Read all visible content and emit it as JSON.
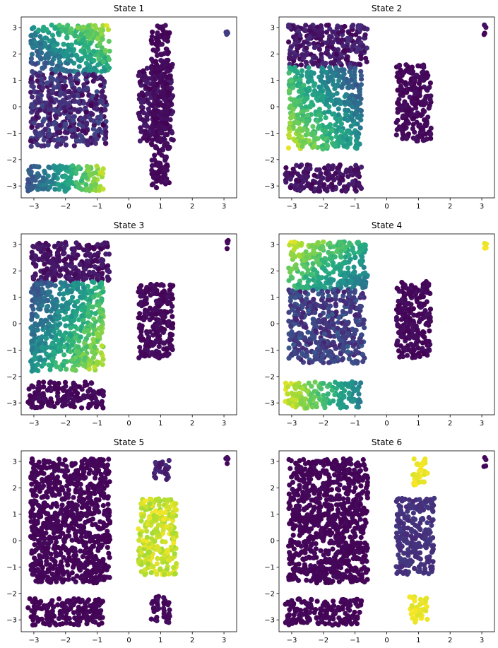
{
  "chart_data": [
    {
      "type": "scatter",
      "title": "State 1",
      "xlim": [
        -3.4,
        3.4
      ],
      "ylim": [
        -3.45,
        3.4
      ],
      "xticks": [
        -3,
        -2,
        -1,
        0,
        1,
        2,
        3
      ],
      "yticks": [
        -3,
        -2,
        -1,
        0,
        1,
        2,
        3
      ],
      "colormap": "viridis",
      "clusters": [
        {
          "x_range": [
            -3.1,
            -0.6
          ],
          "y_range": [
            1.3,
            3.1
          ],
          "color_gradient": "increases toward upper-right",
          "value_range": [
            0.1,
            1.0
          ]
        },
        {
          "x_range": [
            -3.1,
            -0.7
          ],
          "y_range": [
            -1.5,
            1.3
          ],
          "value_range": [
            0.0,
            0.25
          ]
        },
        {
          "x_range": [
            -3.2,
            -0.8
          ],
          "y_range": [
            -3.2,
            -2.2
          ],
          "color_gradient": "increases toward right",
          "value_range": [
            0.2,
            0.95
          ]
        },
        {
          "x_range": [
            0.3,
            1.4
          ],
          "y_range": [
            -1.3,
            1.6
          ],
          "value_range": [
            0.0,
            0.1
          ]
        },
        {
          "x_range": [
            0.7,
            1.3
          ],
          "y_range": [
            -3.1,
            3.1
          ],
          "value_range": [
            0.0,
            0.05
          ]
        },
        {
          "x_range": [
            3.05,
            3.15
          ],
          "y_range": [
            2.7,
            3.15
          ],
          "value_range": [
            0.1,
            0.2
          ]
        }
      ]
    },
    {
      "type": "scatter",
      "title": "State 2",
      "xlim": [
        -3.4,
        3.4
      ],
      "ylim": [
        -3.45,
        3.4
      ],
      "xticks": [
        -3,
        -2,
        -1,
        0,
        1,
        2,
        3
      ],
      "yticks": [
        -3,
        -2,
        -1,
        0,
        1,
        2,
        3
      ],
      "colormap": "viridis",
      "clusters": [
        {
          "x_range": [
            -3.1,
            -0.6
          ],
          "y_range": [
            1.5,
            3.1
          ],
          "value_range": [
            0.0,
            0.15
          ]
        },
        {
          "x_range": [
            -3.1,
            -0.8
          ],
          "y_range": [
            -1.6,
            1.5
          ],
          "color_gradient": "increases toward lower-left",
          "value_range": [
            0.15,
            1.0
          ]
        },
        {
          "x_range": [
            -3.2,
            -0.8
          ],
          "y_range": [
            -3.2,
            -2.2
          ],
          "value_range": [
            0.0,
            0.1
          ]
        },
        {
          "x_range": [
            0.3,
            1.4
          ],
          "y_range": [
            -1.3,
            1.6
          ],
          "value_range": [
            0.0,
            0.05
          ]
        },
        {
          "x_range": [
            3.05,
            3.15
          ],
          "y_range": [
            2.7,
            3.15
          ],
          "value_range": [
            0.0,
            0.05
          ]
        }
      ]
    },
    {
      "type": "scatter",
      "title": "State 3",
      "xlim": [
        -3.4,
        3.4
      ],
      "ylim": [
        -3.45,
        3.4
      ],
      "xticks": [
        -3,
        -2,
        -1,
        0,
        1,
        2,
        3
      ],
      "yticks": [
        -3,
        -2,
        -1,
        0,
        1,
        2,
        3
      ],
      "colormap": "viridis",
      "clusters": [
        {
          "x_range": [
            -3.1,
            -0.6
          ],
          "y_range": [
            1.6,
            3.1
          ],
          "value_range": [
            0.0,
            0.1
          ]
        },
        {
          "x_range": [
            -3.1,
            -0.8
          ],
          "y_range": [
            -1.8,
            1.6
          ],
          "color_gradient": "increases toward lower-right",
          "value_range": [
            0.15,
            1.0
          ]
        },
        {
          "x_range": [
            -3.2,
            -0.8
          ],
          "y_range": [
            -3.2,
            -2.2
          ],
          "value_range": [
            0.0,
            0.05
          ]
        },
        {
          "x_range": [
            0.3,
            1.4
          ],
          "y_range": [
            -1.3,
            1.6
          ],
          "value_range": [
            0.0,
            0.05
          ]
        },
        {
          "x_range": [
            3.05,
            3.15
          ],
          "y_range": [
            2.7,
            3.15
          ],
          "value_range": [
            0.0,
            0.05
          ]
        }
      ]
    },
    {
      "type": "scatter",
      "title": "State 4",
      "xlim": [
        -3.4,
        3.4
      ],
      "ylim": [
        -3.45,
        3.4
      ],
      "xticks": [
        -3,
        -2,
        -1,
        0,
        1,
        2,
        3
      ],
      "yticks": [
        -3,
        -2,
        -1,
        0,
        1,
        2,
        3
      ],
      "colormap": "viridis",
      "clusters": [
        {
          "x_range": [
            -3.1,
            -0.6
          ],
          "y_range": [
            1.3,
            3.1
          ],
          "color_gradient": "increases toward upper-left",
          "value_range": [
            0.3,
            1.0
          ]
        },
        {
          "x_range": [
            -3.1,
            -0.7
          ],
          "y_range": [
            -1.5,
            1.3
          ],
          "value_range": [
            0.08,
            0.3
          ]
        },
        {
          "x_range": [
            -3.2,
            -0.8
          ],
          "y_range": [
            -3.2,
            -2.2
          ],
          "color_gradient": "increases toward left",
          "value_range": [
            0.4,
            1.0
          ]
        },
        {
          "x_range": [
            0.3,
            1.4
          ],
          "y_range": [
            -1.3,
            1.6
          ],
          "value_range": [
            0.0,
            0.05
          ]
        },
        {
          "x_range": [
            3.05,
            3.15
          ],
          "y_range": [
            2.7,
            3.15
          ],
          "value_range": [
            0.95,
            1.0
          ]
        }
      ]
    },
    {
      "type": "scatter",
      "title": "State 5",
      "xlim": [
        -3.4,
        3.4
      ],
      "ylim": [
        -3.45,
        3.4
      ],
      "xticks": [
        -3,
        -2,
        -1,
        0,
        1,
        2,
        3
      ],
      "yticks": [
        -3,
        -2,
        -1,
        0,
        1,
        2,
        3
      ],
      "colormap": "viridis",
      "clusters": [
        {
          "x_range": [
            -3.1,
            -0.6
          ],
          "y_range": [
            -1.6,
            3.1
          ],
          "value_range": [
            0.0,
            0.03
          ]
        },
        {
          "x_range": [
            -3.2,
            -0.8
          ],
          "y_range": [
            -3.2,
            -2.2
          ],
          "value_range": [
            0.0,
            0.03
          ]
        },
        {
          "x_range": [
            0.3,
            1.5
          ],
          "y_range": [
            -1.3,
            1.6
          ],
          "value_range": [
            0.85,
            1.0
          ]
        },
        {
          "x_range": [
            0.8,
            1.3
          ],
          "y_range": [
            2.3,
            3.1
          ],
          "value_range": [
            0.05,
            0.15
          ]
        },
        {
          "x_range": [
            0.7,
            1.3
          ],
          "y_range": [
            -3.1,
            -2.1
          ],
          "value_range": [
            0.0,
            0.05
          ]
        },
        {
          "x_range": [
            3.05,
            3.15
          ],
          "y_range": [
            2.7,
            3.15
          ],
          "value_range": [
            0.0,
            0.05
          ]
        }
      ]
    },
    {
      "type": "scatter",
      "title": "State 6",
      "xlim": [
        -3.4,
        3.4
      ],
      "ylim": [
        -3.45,
        3.4
      ],
      "xticks": [
        -3,
        -2,
        -1,
        0,
        1,
        2,
        3
      ],
      "yticks": [
        -3,
        -2,
        -1,
        0,
        1,
        2,
        3
      ],
      "colormap": "viridis",
      "clusters": [
        {
          "x_range": [
            -3.1,
            -0.6
          ],
          "y_range": [
            -1.6,
            3.1
          ],
          "value_range": [
            0.0,
            0.03
          ]
        },
        {
          "x_range": [
            -3.2,
            -0.8
          ],
          "y_range": [
            -3.2,
            -2.2
          ],
          "value_range": [
            0.0,
            0.03
          ]
        },
        {
          "x_range": [
            0.3,
            1.5
          ],
          "y_range": [
            -1.3,
            1.6
          ],
          "value_range": [
            0.12,
            0.18
          ]
        },
        {
          "x_range": [
            0.8,
            1.3
          ],
          "y_range": [
            2.1,
            3.1
          ],
          "value_range": [
            0.95,
            1.0
          ]
        },
        {
          "x_range": [
            0.7,
            1.3
          ],
          "y_range": [
            -3.1,
            -2.1
          ],
          "value_range": [
            0.95,
            1.0
          ]
        },
        {
          "x_range": [
            3.05,
            3.15
          ],
          "y_range": [
            2.7,
            3.15
          ],
          "value_range": [
            0.0,
            0.05
          ]
        }
      ]
    }
  ]
}
